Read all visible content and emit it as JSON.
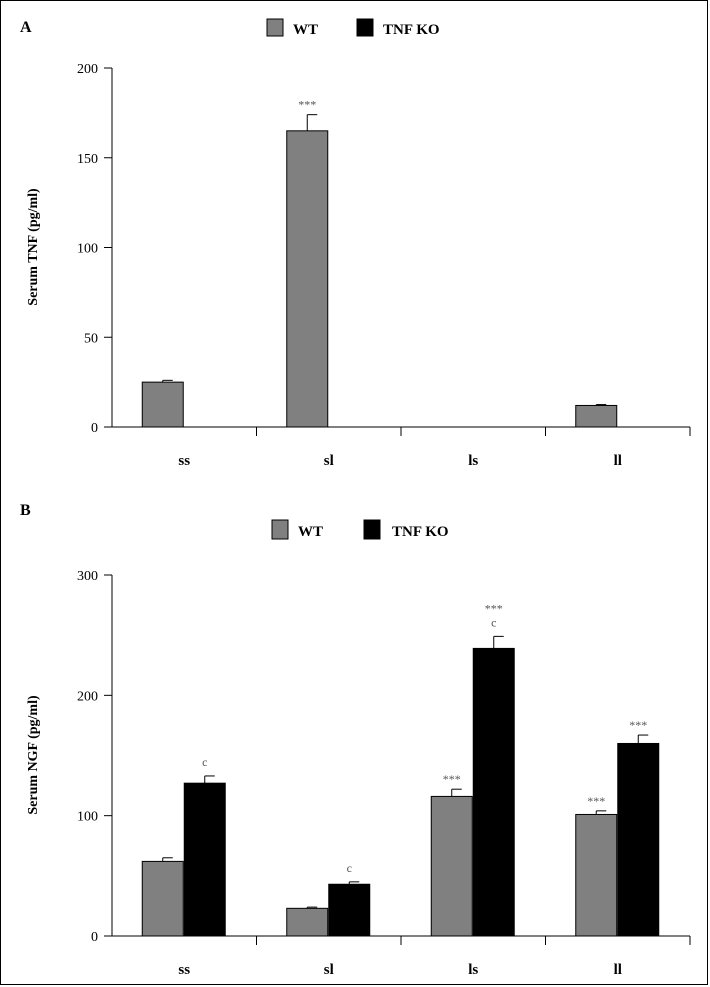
{
  "colors": {
    "wt": "#808080",
    "ko": "#000000",
    "annotation": "#555555"
  },
  "legend": [
    {
      "label": "WT",
      "color": "#808080"
    },
    {
      "label": "TNF KO",
      "color": "#000000"
    }
  ],
  "chart_data": [
    {
      "panel_letter": "A",
      "type": "bar",
      "ylabel": "Serum TNF (pg/ml)",
      "xlabel": "",
      "ylim": [
        0,
        200
      ],
      "yticks": [
        0,
        50,
        100,
        150,
        200
      ],
      "categories": [
        "ss",
        "sl",
        "ls",
        "ll"
      ],
      "series": [
        {
          "name": "WT",
          "values": [
            25,
            165,
            0,
            12
          ],
          "errors": [
            1,
            9,
            0,
            0.5
          ],
          "annotations": [
            "",
            "***",
            "",
            ""
          ]
        },
        {
          "name": "TNF KO",
          "values": [
            0,
            0,
            0,
            0
          ],
          "errors": [
            0,
            0,
            0,
            0
          ],
          "annotations": [
            "",
            "",
            "",
            ""
          ]
        }
      ],
      "legend_position": "top-center",
      "grid": false
    },
    {
      "panel_letter": "B",
      "type": "bar",
      "ylabel": "Serum NGF (pg/ml)",
      "xlabel": "",
      "ylim": [
        0,
        300
      ],
      "yticks": [
        0,
        100,
        200,
        300
      ],
      "categories": [
        "ss",
        "sl",
        "ls",
        "ll"
      ],
      "series": [
        {
          "name": "WT",
          "values": [
            62,
            23,
            116,
            101
          ],
          "errors": [
            3,
            1,
            6,
            3
          ],
          "annotations": [
            "",
            "",
            "***",
            "***"
          ]
        },
        {
          "name": "TNF KO",
          "values": [
            127,
            43,
            239,
            160
          ],
          "errors": [
            6,
            2,
            10,
            7
          ],
          "annotations": [
            "c",
            "c",
            "***\nc",
            "***"
          ]
        }
      ],
      "legend_position": "top-center",
      "grid": false
    }
  ]
}
